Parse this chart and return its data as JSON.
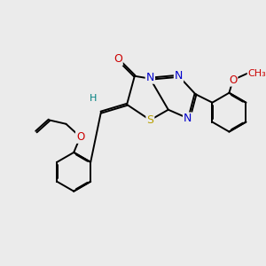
{
  "bg_color": "#ebebeb",
  "bond_color": "#000000",
  "bond_width": 1.4,
  "dbo": 0.035,
  "S_color": "#b8a000",
  "N_color": "#0000cc",
  "O_color": "#cc0000",
  "H_color": "#008080",
  "fig_size": [
    3.0,
    3.0
  ],
  "dpi": 100,
  "xlim": [
    0,
    10
  ],
  "ylim": [
    0,
    10
  ]
}
